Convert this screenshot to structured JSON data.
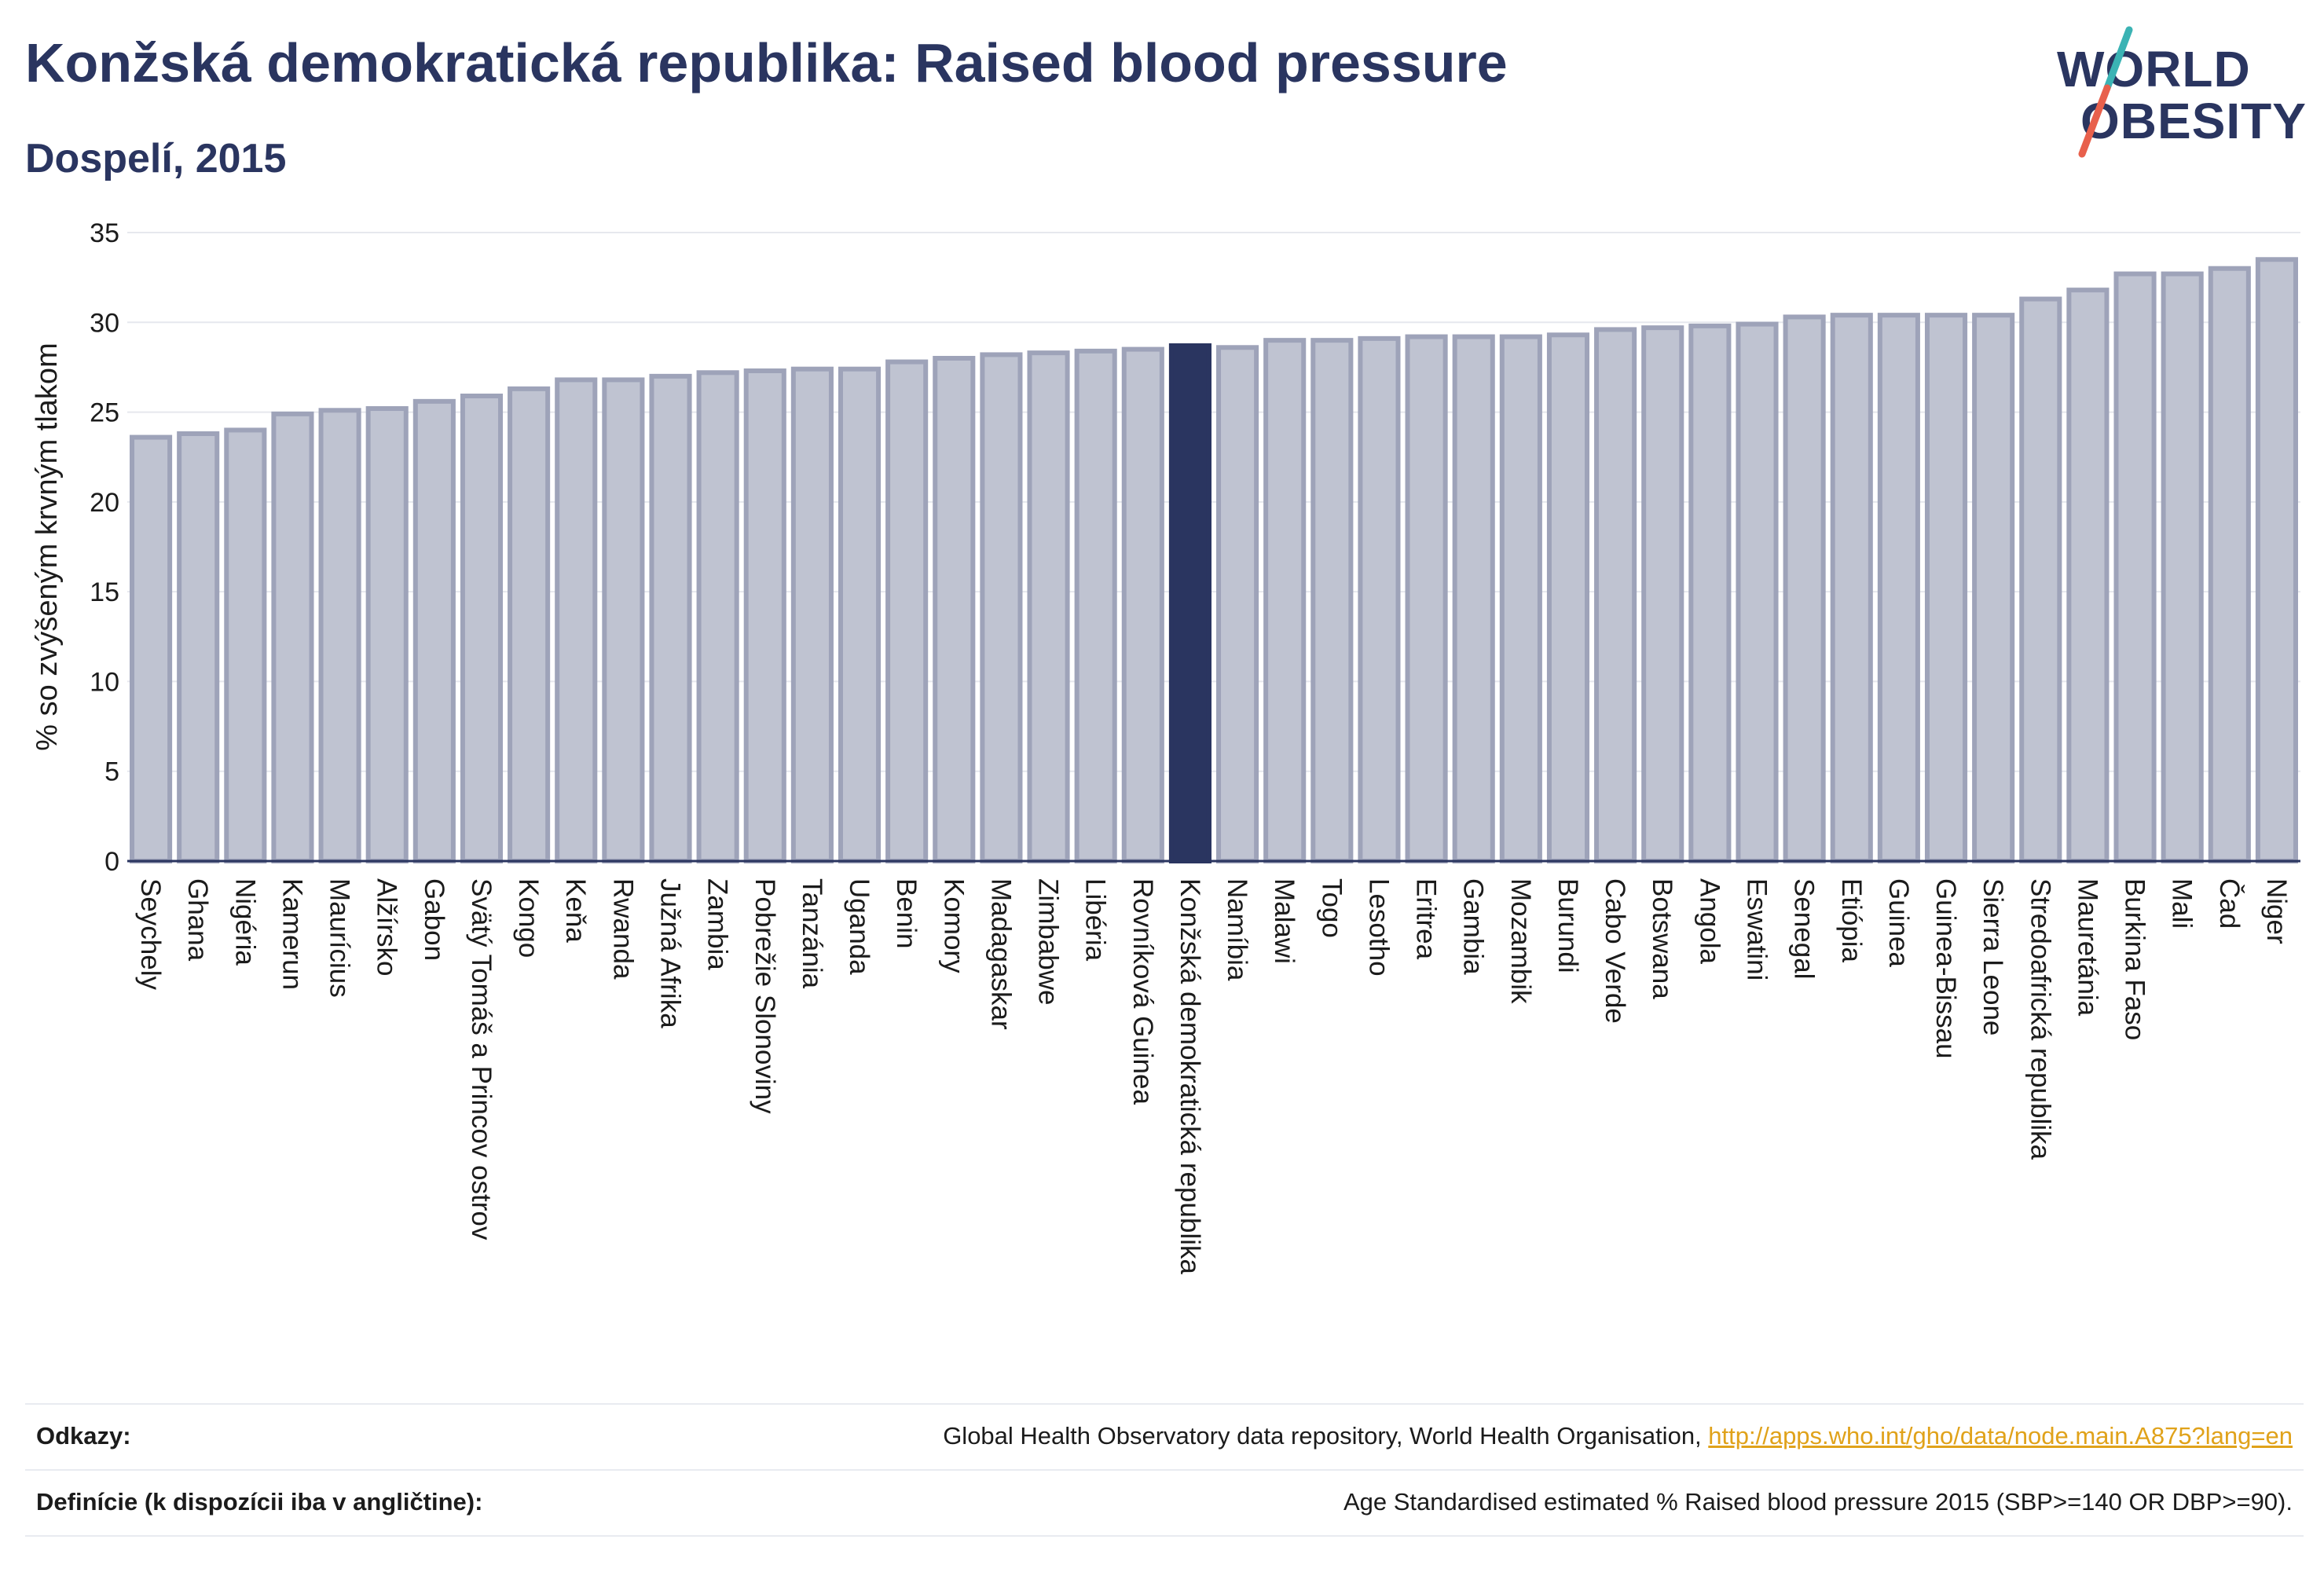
{
  "header": {
    "title": "Konžská demokratická republika: Raised blood pressure",
    "subtitle": "Dospelí, 2015"
  },
  "logo": {
    "line1": "WORLD",
    "line2": "OBESITY",
    "slash_colors": [
      "#3bb3b4",
      "#e8604c"
    ]
  },
  "colors": {
    "bar": "#bfc3d1",
    "bar_edge": "#9ea3b9",
    "highlight": "#2a3560",
    "text": "#2a3560",
    "grid": "#e6e8ee",
    "link": "#e0a21a"
  },
  "chart_data": {
    "type": "bar",
    "ylabel": "% so zvýšeným krvným tlakom",
    "ylim": [
      0,
      35
    ],
    "yticks": [
      0,
      5,
      10,
      15,
      20,
      25,
      30,
      35
    ],
    "grid": true,
    "highlight": "Konžská demokratická republika",
    "categories": [
      "Seychely",
      "Ghana",
      "Nigéria",
      "Kamerun",
      "Maurícius",
      "Alžírsko",
      "Gabon",
      "Svätý Tomáš a Princov ostrov",
      "Kongo",
      "Keňa",
      "Rwanda",
      "Južná Afrika",
      "Zambia",
      "Pobrežie Slonoviny",
      "Tanzánia",
      "Uganda",
      "Benin",
      "Komory",
      "Madagaskar",
      "Zimbabwe",
      "Libéria",
      "Rovníková Guinea",
      "Konžská demokratická republika",
      "Namíbia",
      "Malawi",
      "Togo",
      "Lesotho",
      "Eritrea",
      "Gambia",
      "Mozambik",
      "Burundi",
      "Cabo Verde",
      "Botswana",
      "Angola",
      "Eswatini",
      "Senegal",
      "Etiópia",
      "Guinea",
      "Guinea-Bissau",
      "Sierra Leone",
      "Stredoafrická republika",
      "Mauretánia",
      "Burkina Faso",
      "Mali",
      "Čad",
      "Niger"
    ],
    "values": [
      23.6,
      23.8,
      24.0,
      24.9,
      25.1,
      25.2,
      25.6,
      25.9,
      26.3,
      26.8,
      26.8,
      27.0,
      27.2,
      27.3,
      27.4,
      27.4,
      27.8,
      28.0,
      28.2,
      28.3,
      28.4,
      28.5,
      28.7,
      28.6,
      29.0,
      29.0,
      29.1,
      29.2,
      29.2,
      29.2,
      29.3,
      29.6,
      29.7,
      29.8,
      29.9,
      30.3,
      30.4,
      30.4,
      30.4,
      30.4,
      31.3,
      31.8,
      32.7,
      32.7,
      33.0,
      33.5
    ]
  },
  "footer": {
    "references_label": "Odkazy:",
    "references_text": "Global Health Observatory data repository, World Health Organisation, ",
    "references_link": "http://apps.who.int/gho/data/node.main.A875?lang=en",
    "definitions_label": "Definície (k dispozícii iba v angličtine):",
    "definitions_text": "Age Standardised estimated % Raised blood pressure 2015 (SBP>=140 OR DBP>=90)."
  }
}
